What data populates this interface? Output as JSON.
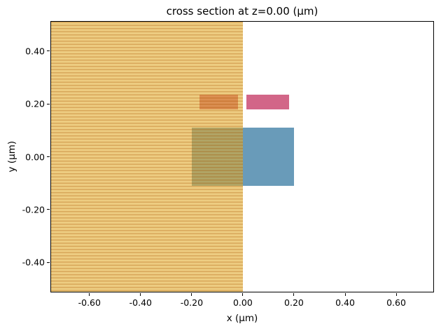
{
  "title": "cross section at z=0.00 (μm)",
  "axes": {
    "xlabel": "x (μm)",
    "ylabel": "y (μm)",
    "xticks": [
      {
        "v": -0.6,
        "label": "-0.60"
      },
      {
        "v": -0.4,
        "label": "-0.40"
      },
      {
        "v": -0.2,
        "label": "-0.20"
      },
      {
        "v": 0.0,
        "label": "0.00"
      },
      {
        "v": 0.2,
        "label": "0.20"
      },
      {
        "v": 0.4,
        "label": "0.40"
      },
      {
        "v": 0.6,
        "label": "0.60"
      }
    ],
    "yticks": [
      {
        "v": 0.4,
        "label": "0.40"
      },
      {
        "v": 0.2,
        "label": "0.20"
      },
      {
        "v": 0.0,
        "label": "0.00"
      },
      {
        "v": -0.2,
        "label": "-0.20"
      },
      {
        "v": -0.4,
        "label": "-0.40"
      }
    ]
  },
  "chart_data": {
    "type": "patches",
    "description": "Simulation structure cross section at z=0.00 μm; rectangular material patches drawn in axis coordinates (μm). Shapes listed in draw order (last on top).",
    "title": "cross section at z=0.00 (μm)",
    "xlabel": "x (μm)",
    "ylabel": "y (μm)",
    "xlim": [
      -0.75,
      0.745
    ],
    "ylim": [
      -0.51,
      0.51
    ],
    "grid": false,
    "legend": false,
    "colors": {
      "medium_gold": "#e1aa2d",
      "medium_hatch": "#c88214",
      "core_blue": "#699bb9",
      "slab_pink": "#d26688"
    },
    "shapes": [
      {
        "name": "waveguide-core-rect",
        "x0": -0.2,
        "x1": 0.2,
        "y0": -0.11,
        "y1": 0.11,
        "fill": "#699bb9",
        "alpha": 1,
        "hatch": false
      },
      {
        "name": "upper-left-slab-rect",
        "x0": -0.17,
        "x1": -0.02,
        "y0": 0.18,
        "y1": 0.235,
        "fill": "#d26688",
        "alpha": 1,
        "hatch": false
      },
      {
        "name": "upper-right-slab-rect",
        "x0": 0.015,
        "x1": 0.18,
        "y0": 0.18,
        "y1": 0.235,
        "fill": "#d26688",
        "alpha": 1,
        "hatch": false
      },
      {
        "name": "background-medium-rect",
        "x0": -0.75,
        "x1": 0.0,
        "y0": -0.51,
        "y1": 0.51,
        "fill": "#e1aa2d",
        "alpha": 0.6,
        "hatch": true,
        "hatch_style": "horizontal-lines",
        "hatch_color": "#c88214",
        "hatch_alpha": 0.7
      }
    ]
  }
}
